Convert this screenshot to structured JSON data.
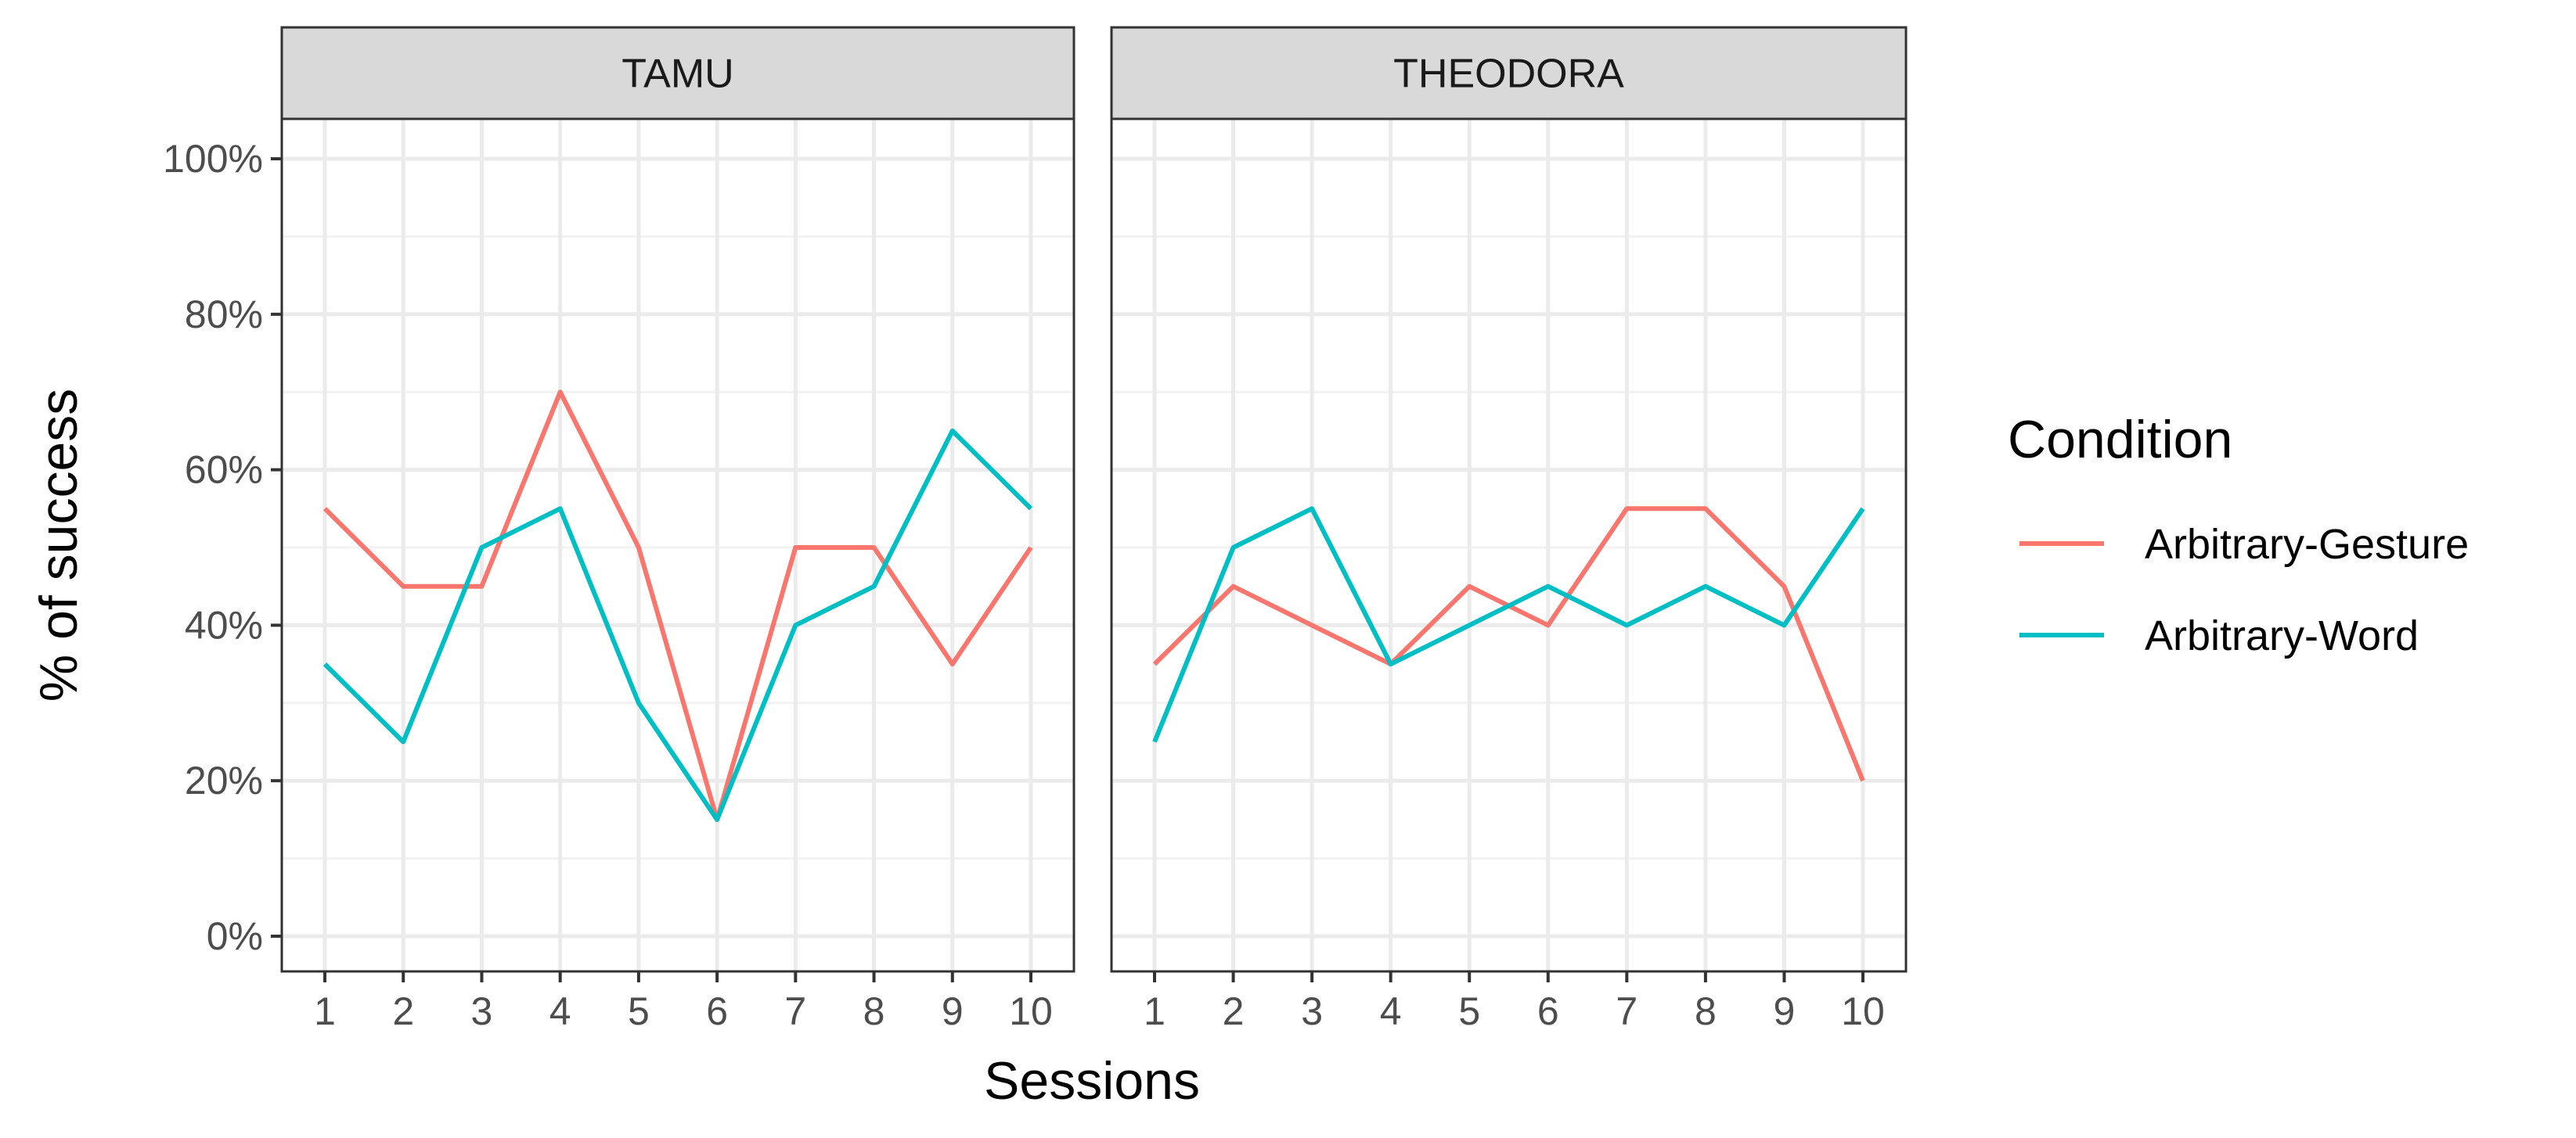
{
  "chart_data": {
    "type": "line",
    "xlabel": "Sessions",
    "ylabel": "% of success",
    "x": [
      1,
      2,
      3,
      4,
      5,
      6,
      7,
      8,
      9,
      10
    ],
    "xlim": [
      1,
      10
    ],
    "ylim": [
      0,
      100
    ],
    "y_ticks": [
      0,
      20,
      40,
      60,
      80,
      100
    ],
    "y_tick_labels": [
      "0%",
      "20%",
      "40%",
      "60%",
      "80%",
      "100%"
    ],
    "grid": true,
    "legend": {
      "title": "Condition",
      "position": "right"
    },
    "series_styles": [
      {
        "name": "Arbitrary-Gesture",
        "color": "#F8766D"
      },
      {
        "name": "Arbitrary-Word",
        "color": "#00BFC4"
      }
    ],
    "facets": [
      {
        "label": "TAMU",
        "series": [
          {
            "name": "Arbitrary-Gesture",
            "values": [
              55,
              45,
              45,
              70,
              50,
              15,
              50,
              50,
              35,
              50
            ]
          },
          {
            "name": "Arbitrary-Word",
            "values": [
              35,
              25,
              50,
              55,
              30,
              15,
              40,
              45,
              65,
              55
            ]
          }
        ]
      },
      {
        "label": "THEODORA",
        "series": [
          {
            "name": "Arbitrary-Gesture",
            "values": [
              35,
              45,
              40,
              35,
              45,
              40,
              55,
              55,
              45,
              20
            ]
          },
          {
            "name": "Arbitrary-Word",
            "values": [
              25,
              50,
              55,
              35,
              40,
              45,
              40,
              45,
              40,
              55
            ]
          }
        ]
      }
    ]
  },
  "colors": {
    "background": "#ffffff",
    "panel_border": "#333333",
    "strip_fill": "#d9d9d9",
    "grid_major": "#ebebeb",
    "grid_minor": "#f2f2f2",
    "tick": "#333333"
  }
}
